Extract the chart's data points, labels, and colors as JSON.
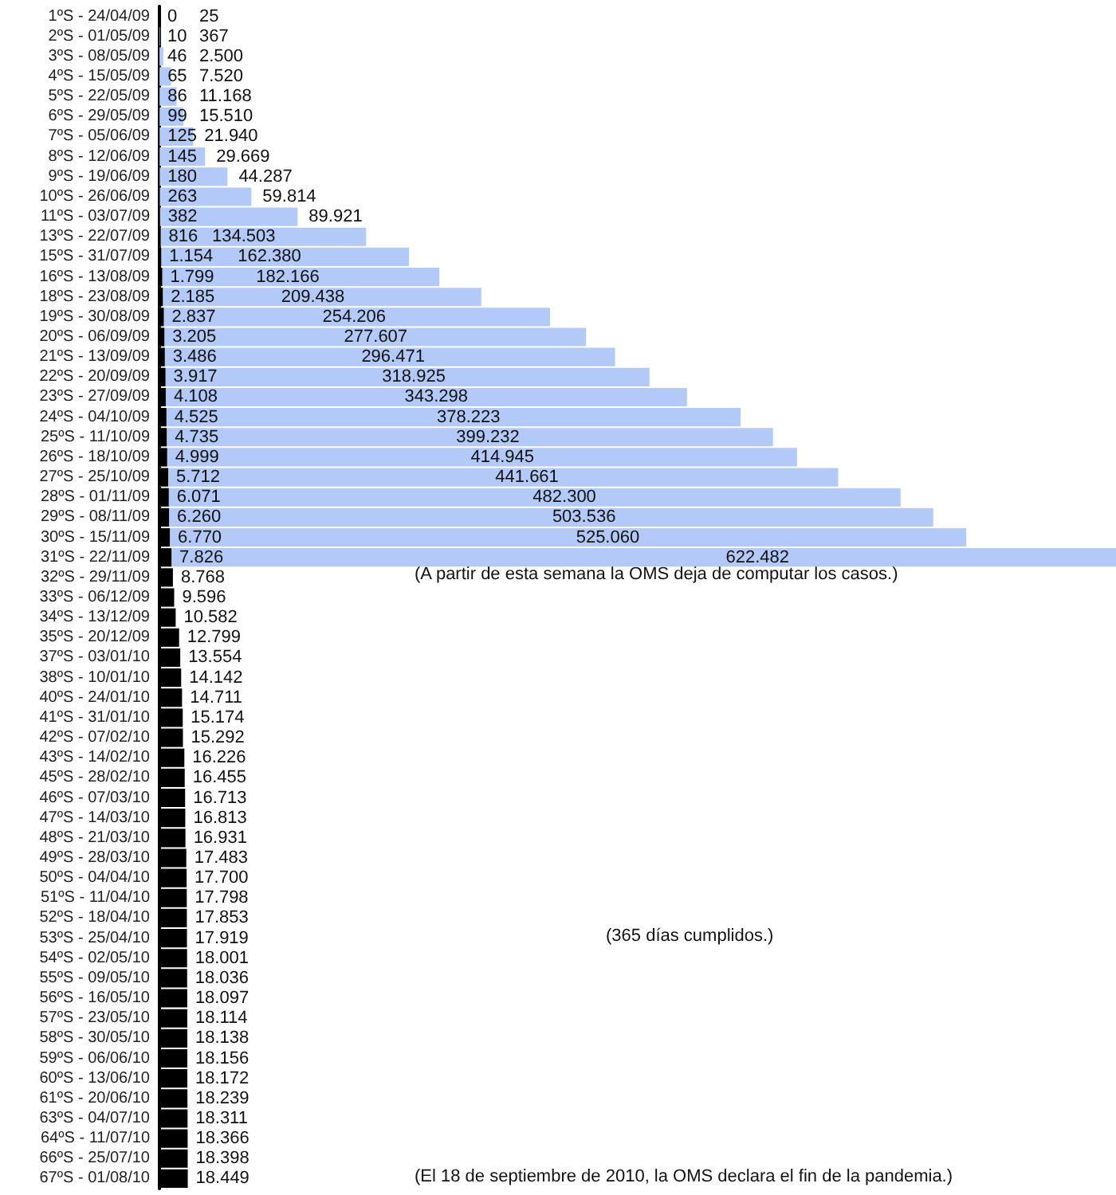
{
  "chart_data": {
    "type": "bar",
    "orientation": "horizontal",
    "categories": [
      "1ºS - 24/04/09",
      "2ºS - 01/05/09",
      "3ºS - 08/05/09",
      "4ºS - 15/05/09",
      "5ºS - 22/05/09",
      "6ºS - 29/05/09",
      "7ºS - 05/06/09",
      "8ºS - 12/06/09",
      "9ºS - 19/06/09",
      "10ºS - 26/06/09",
      "11ºS - 03/07/09",
      "13ºS - 22/07/09",
      "15ºS - 31/07/09",
      "16ºS - 13/08/09",
      "18ºS - 23/08/09",
      "19ºS - 30/08/09",
      "20ºS - 06/09/09",
      "21ºS - 13/09/09",
      "22ºS - 20/09/09",
      "23ºS - 27/09/09",
      "24ºS - 04/10/09",
      "25ºS - 11/10/09",
      "26ºS - 18/10/09",
      "27ºS - 25/10/09",
      "28ºS - 01/11/09",
      "29ºS - 08/11/09",
      "30ºS - 15/11/09",
      "31ºS - 22/11/09",
      "32ºS - 29/11/09",
      "33ºS - 06/12/09",
      "34ºS - 13/12/09",
      "35ºS - 20/12/09",
      "37ºS - 03/01/10",
      "38ºS - 10/01/10",
      "40ºS - 24/01/10",
      "41ºS - 31/01/10",
      "42ºS - 07/02/10",
      "43ºS - 14/02/10",
      "45ºS - 28/02/10",
      "46ºS - 07/03/10",
      "47ºS - 14/03/10",
      "48ºS - 21/03/10",
      "49ºS - 28/03/10",
      "50ºS - 04/04/10",
      "51ºS - 11/04/10",
      "52ºS - 18/04/10",
      "53ºS - 25/04/10",
      "54ºS - 02/05/10",
      "55ºS - 09/05/10",
      "56ºS - 16/05/10",
      "57ºS - 23/05/10",
      "58ºS - 30/05/10",
      "59ºS - 06/06/10",
      "60ºS - 13/06/10",
      "61ºS - 20/06/10",
      "63ºS - 04/07/10",
      "64ºS - 11/07/10",
      "66ºS - 25/07/10",
      "67ºS - 01/08/10"
    ],
    "series": [
      {
        "color": "#b3c9f7",
        "values": [
          25,
          367,
          2500,
          7520,
          11168,
          15510,
          21940,
          29669,
          44287,
          59814,
          89921,
          134503,
          162380,
          182166,
          209438,
          254206,
          277607,
          296471,
          318925,
          343298,
          378223,
          399232,
          414945,
          441661,
          482300,
          503536,
          525060,
          622482,
          null,
          null,
          null,
          null,
          null,
          null,
          null,
          null,
          null,
          null,
          null,
          null,
          null,
          null,
          null,
          null,
          null,
          null,
          null,
          null,
          null,
          null,
          null,
          null,
          null,
          null,
          null,
          null,
          null,
          null,
          null
        ],
        "value_labels": [
          "25",
          "367",
          "2.500",
          "7.520",
          "11.168",
          "15.510",
          "21.940",
          "29.669",
          "44.287",
          "59.814",
          "89.921",
          "134.503",
          "162.380",
          "182.166",
          "209.438",
          "254.206",
          "277.607",
          "296.471",
          "318.925",
          "343.298",
          "378.223",
          "399.232",
          "414.945",
          "441.661",
          "482.300",
          "503.536",
          "525.060",
          "622.482",
          null,
          null,
          null,
          null,
          null,
          null,
          null,
          null,
          null,
          null,
          null,
          null,
          null,
          null,
          null,
          null,
          null,
          null,
          null,
          null,
          null,
          null,
          null,
          null,
          null,
          null,
          null,
          null,
          null,
          null,
          null
        ]
      },
      {
        "color": "#000000",
        "values": [
          0,
          10,
          46,
          65,
          86,
          99,
          125,
          145,
          180,
          263,
          382,
          816,
          1154,
          1799,
          2185,
          2837,
          3205,
          3486,
          3917,
          4108,
          4525,
          4735,
          4999,
          5712,
          6071,
          6260,
          6770,
          7826,
          8768,
          9596,
          10582,
          12799,
          13554,
          14142,
          14711,
          15174,
          15292,
          16226,
          16455,
          16713,
          16813,
          16931,
          17483,
          17700,
          17798,
          17853,
          17919,
          18001,
          18036,
          18097,
          18114,
          18138,
          18156,
          18172,
          18239,
          18311,
          18366,
          18398,
          18449
        ],
        "value_labels": [
          "0",
          "10",
          "46",
          "65",
          "86",
          "99",
          "125",
          "145",
          "180",
          "263",
          "382",
          "816",
          "1.154",
          "1.799",
          "2.185",
          "2.837",
          "3.205",
          "3.486",
          "3.917",
          "4.108",
          "4.525",
          "4.735",
          "4.999",
          "5.712",
          "6.071",
          "6.260",
          "6.770",
          "7.826",
          "8.768",
          "9.596",
          "10.582",
          "12.799",
          "13.554",
          "14.142",
          "14.711",
          "15.174",
          "15.292",
          "16.226",
          "16.455",
          "16.713",
          "16.813",
          "16.931",
          "17.483",
          "17.700",
          "17.798",
          "17.853",
          "17.919",
          "18.001",
          "18.036",
          "18.097",
          "18.114",
          "18.138",
          "18.156",
          "18.172",
          "18.239",
          "18.311",
          "18.366",
          "18.398",
          "18.449"
        ]
      }
    ],
    "annotations": [
      "(A partir de esta semana la OMS deja de computar los casos.)",
      "(365 días cumplidos.)",
      "(El 18 de septiembre de 2010, la OMS declara el fin de la pandemia.)"
    ]
  }
}
